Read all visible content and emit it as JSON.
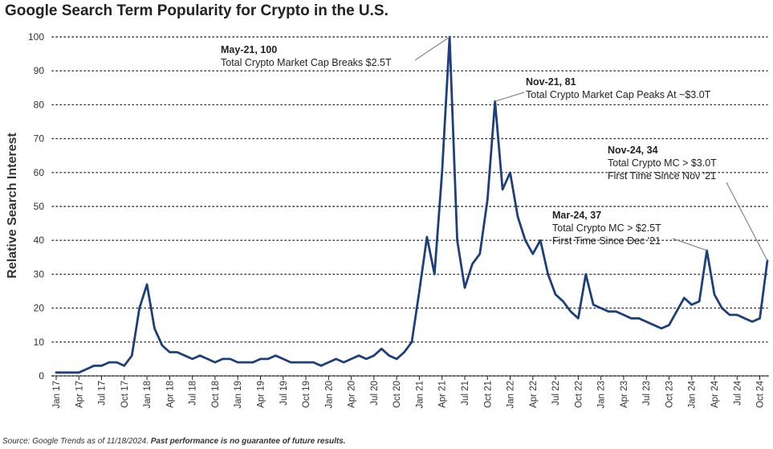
{
  "title": "Google Search Term Popularity for Crypto in the U.S.",
  "source": {
    "prefix": "Source: Google Trends as of 11/18/2024. ",
    "emphasis": "Past performance is no guarantee of future results."
  },
  "colors": {
    "line": "#1f3f7a",
    "grid": "#333333",
    "leader": "#888888",
    "text": "#333333"
  },
  "chart_data": {
    "type": "line",
    "title": "Google Search Term Popularity for Crypto in the U.S.",
    "xlabel": "",
    "ylabel": "Relative Search Interest",
    "ylim": [
      0,
      100
    ],
    "yticks": [
      0,
      10,
      20,
      30,
      40,
      50,
      60,
      70,
      80,
      90,
      100
    ],
    "grid": "horizontal dotted",
    "start_month": "Jan 17",
    "tick_labels": [
      "Jan 17",
      "Apr 17",
      "Jul 17",
      "Oct 17",
      "Jan 18",
      "Apr 18",
      "Jul 18",
      "Oct 18",
      "Jan 19",
      "Apr 19",
      "Jul 19",
      "Oct 19",
      "Jan 20",
      "Apr 20",
      "Jul 20",
      "Oct 20",
      "Jan 21",
      "Apr 21",
      "Jul 21",
      "Oct 21",
      "Jan 22",
      "Apr 22",
      "Jul 22",
      "Oct 22",
      "Jan 23",
      "Apr 23",
      "Jul 23",
      "Oct 23",
      "Jan 24",
      "Apr 24",
      "Jul 24",
      "Oct 24"
    ],
    "series": [
      {
        "values": [
          1,
          1,
          1,
          1,
          2,
          3,
          3,
          4,
          4,
          3,
          6,
          20,
          27,
          14,
          9,
          7,
          7,
          6,
          5,
          6,
          5,
          4,
          5,
          5,
          4,
          4,
          4,
          5,
          5,
          6,
          5,
          4,
          4,
          4,
          4,
          3,
          4,
          5,
          4,
          5,
          6,
          5,
          6,
          8,
          6,
          5,
          7,
          10,
          25,
          41,
          30,
          60,
          100,
          40,
          26,
          33,
          36,
          52,
          81,
          55,
          60,
          47,
          40,
          36,
          40,
          30,
          24,
          22,
          19,
          17,
          30,
          21,
          20,
          19,
          19,
          18,
          17,
          17,
          16,
          15,
          14,
          15,
          19,
          23,
          21,
          22,
          37,
          24,
          20,
          18,
          18,
          17,
          16,
          17,
          34
        ]
      }
    ],
    "annotations": [
      {
        "month": "May-21",
        "value": 100,
        "lines": [
          "May-21, 100",
          "Total Crypto Market Cap Breaks $2.5T"
        ]
      },
      {
        "month": "Nov-21",
        "value": 81,
        "lines": [
          "Nov-21, 81",
          "Total Crypto Market Cap Peaks At ~$3.0T"
        ]
      },
      {
        "month": "Mar-24",
        "value": 37,
        "lines": [
          "Mar-24, 37",
          "Total Crypto MC > $2.5T",
          "First Time Since Dec '21"
        ]
      },
      {
        "month": "Nov-24",
        "value": 34,
        "lines": [
          "Nov-24, 34",
          "Total Crypto MC > $3.0T",
          "First Time Since Nov '21"
        ]
      }
    ]
  }
}
